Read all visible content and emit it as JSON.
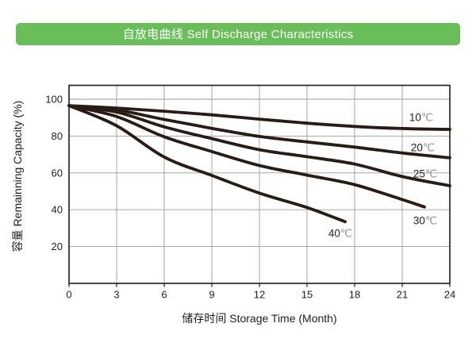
{
  "header": {
    "title": "自放电曲线 Self Discharge Characteristics",
    "bg_color": "#6abe59",
    "text_color": "#ffffff"
  },
  "chart_data": {
    "type": "line",
    "title": "自放电曲线 Self Discharge Characteristics",
    "xlabel": "储存时间 Storage Time (Month)",
    "ylabel": "容量 Remainning Capacity (%)",
    "xlim": [
      0,
      24
    ],
    "ylim": [
      0,
      107.5
    ],
    "x_ticks": [
      0,
      3,
      6,
      9,
      12,
      15,
      18,
      21,
      24
    ],
    "y_ticks": [
      20,
      40,
      60,
      80,
      100
    ],
    "grid": true,
    "legend_position": "inline-labels",
    "curve_color": "#2a1b15",
    "curve_width": 3.8,
    "grid_color": "#9b9b9b",
    "series": [
      {
        "name": "10℃",
        "label": {
          "num": "10",
          "unit": "℃",
          "x": 22.2,
          "y": 90.0
        },
        "points": [
          [
            0,
            96.5
          ],
          [
            3,
            95.2
          ],
          [
            6,
            93.5
          ],
          [
            9,
            91.5
          ],
          [
            12,
            89.2
          ],
          [
            15,
            87.0
          ],
          [
            18,
            85.2
          ],
          [
            21,
            84.1
          ],
          [
            24,
            83.6
          ]
        ]
      },
      {
        "name": "20℃",
        "label": {
          "num": "20",
          "unit": "℃",
          "x": 22.3,
          "y": 73.7
        },
        "points": [
          [
            0,
            96.5
          ],
          [
            3,
            94.2
          ],
          [
            6,
            89.0
          ],
          [
            9,
            84.2
          ],
          [
            12,
            79.8
          ],
          [
            15,
            76.8
          ],
          [
            18,
            74.0
          ],
          [
            21,
            70.8
          ],
          [
            24,
            68.2
          ]
        ]
      },
      {
        "name": "25℃",
        "label": {
          "num": "25",
          "unit": "℃",
          "x": 22.45,
          "y": 59.5
        },
        "points": [
          [
            0,
            96.5
          ],
          [
            3,
            93.0
          ],
          [
            6,
            85.0
          ],
          [
            9,
            78.6
          ],
          [
            12,
            72.6
          ],
          [
            15,
            68.8
          ],
          [
            18,
            64.8
          ],
          [
            21,
            58.0
          ],
          [
            24,
            53.0
          ]
        ]
      },
      {
        "name": "30℃",
        "label": {
          "num": "30",
          "unit": "℃",
          "x": 22.45,
          "y": 34.1
        },
        "points": [
          [
            0,
            96.5
          ],
          [
            3,
            90.6
          ],
          [
            6,
            79.6
          ],
          [
            9,
            71.6
          ],
          [
            12,
            64.0
          ],
          [
            15,
            58.8
          ],
          [
            18,
            53.6
          ],
          [
            21,
            45.5
          ],
          [
            22.4,
            41.5
          ]
        ]
      },
      {
        "name": "40℃",
        "label": {
          "num": "40",
          "unit": "℃",
          "x": 17.1,
          "y": 27.2
        },
        "points": [
          [
            0,
            96.5
          ],
          [
            3,
            85.6
          ],
          [
            6,
            68.6
          ],
          [
            9,
            58.6
          ],
          [
            12,
            49.0
          ],
          [
            15,
            41.2
          ],
          [
            17.4,
            33.5
          ]
        ]
      }
    ]
  }
}
